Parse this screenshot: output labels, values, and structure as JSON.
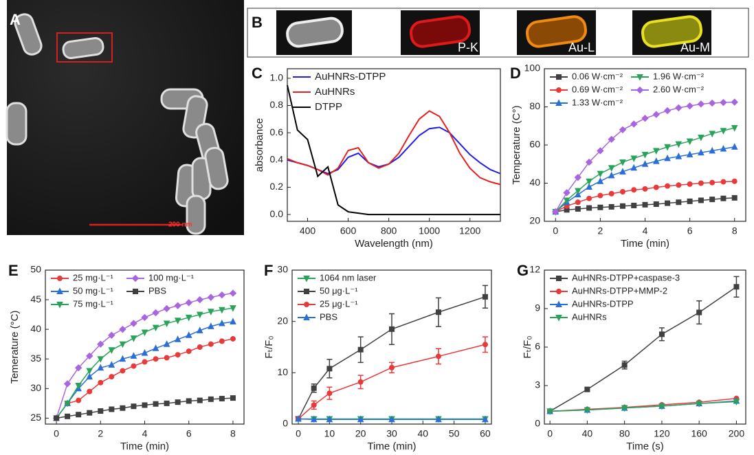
{
  "figure": {
    "panel_a": {
      "label": "A",
      "scale_bar": "200 nm"
    },
    "panel_b": {
      "label": "B",
      "maps": [
        "P-K",
        "Au-L",
        "Au-M"
      ]
    }
  },
  "chart_data": [
    {
      "type": "line",
      "panel_label": "C",
      "x_label": "Wavelength (nm)",
      "y_label": "absorbance",
      "legend": "upper left",
      "legend_columns": 1,
      "markers": false,
      "x": [
        300,
        350,
        400,
        450,
        500,
        550,
        600,
        650,
        700,
        750,
        800,
        850,
        900,
        950,
        1000,
        1050,
        1100,
        1150,
        1200,
        1250,
        1300,
        1350
      ],
      "xlim": [
        300,
        1350
      ],
      "xticks": [
        400,
        600,
        800,
        1000,
        1200
      ],
      "ylim": [
        -0.05,
        1.07
      ],
      "yticks": [
        {
          "value": 0,
          "label": "0.0"
        },
        {
          "value": 0.2,
          "label": "0.2"
        },
        {
          "value": 0.4,
          "label": "0.4"
        },
        {
          "value": 0.6,
          "label": "0.6"
        },
        {
          "value": 0.8,
          "label": "0.8"
        },
        {
          "value": 1,
          "label": "1.0"
        }
      ],
      "series": [
        {
          "name": "AuHNRs-DTPP",
          "color": "#1f1fe6",
          "values": [
            0.4,
            0.38,
            0.36,
            0.33,
            0.3,
            0.33,
            0.42,
            0.45,
            0.38,
            0.35,
            0.37,
            0.42,
            0.5,
            0.58,
            0.63,
            0.64,
            0.6,
            0.52,
            0.44,
            0.38,
            0.33,
            0.3
          ]
        },
        {
          "name": "AuHNRs",
          "color": "#e62020",
          "values": [
            0.41,
            0.38,
            0.36,
            0.33,
            0.29,
            0.34,
            0.47,
            0.49,
            0.38,
            0.34,
            0.37,
            0.45,
            0.58,
            0.7,
            0.76,
            0.72,
            0.6,
            0.45,
            0.34,
            0.27,
            0.24,
            0.22
          ]
        },
        {
          "name": "DTPP",
          "color": "#000000",
          "values": [
            0.95,
            0.62,
            0.55,
            0.28,
            0.35,
            0.07,
            0.02,
            0.01,
            0.0,
            0.0,
            0.0,
            0.0,
            0.0,
            0.0,
            0.0,
            0.0,
            0.0,
            0.0,
            0.0,
            0.0,
            0.0,
            0.0
          ]
        }
      ]
    },
    {
      "type": "line",
      "panel_label": "D",
      "x_label": "Time (min)",
      "y_label": "Temperature (C°)",
      "legend": "upper left",
      "legend_columns": 2,
      "markers": true,
      "x": [
        0,
        0.5,
        1,
        1.5,
        2,
        2.5,
        3,
        3.5,
        4,
        4.5,
        5,
        5.5,
        6,
        6.5,
        7,
        7.5,
        8
      ],
      "xlim": [
        -0.5,
        8.5
      ],
      "xticks": [
        0,
        2,
        4,
        6,
        8
      ],
      "ylim": [
        20,
        100
      ],
      "yticks": [
        20,
        40,
        60,
        80,
        100
      ],
      "series": [
        {
          "name": "0.06 W·cm⁻²",
          "color": "#404040",
          "marker": "square",
          "values": [
            25,
            26,
            26.5,
            27,
            27.3,
            27.6,
            28,
            28.3,
            28.7,
            29,
            29.5,
            30,
            30.5,
            31,
            31.5,
            32,
            32.3
          ]
        },
        {
          "name": "0.69 W·cm⁻²",
          "color": "#e83a3a",
          "marker": "circle",
          "values": [
            25,
            28,
            30,
            32,
            33.5,
            34.5,
            35.5,
            36.5,
            37,
            37.8,
            38.5,
            39,
            39.5,
            40,
            40.3,
            40.7,
            41
          ]
        },
        {
          "name": "1.33 W·cm⁻²",
          "color": "#2a6fd6",
          "marker": "triangle",
          "values": [
            25,
            30,
            34,
            38,
            41,
            44,
            46,
            48,
            50,
            51.5,
            53,
            54,
            55,
            56,
            57,
            58,
            59
          ]
        },
        {
          "name": "1.96 W·cm⁻²",
          "color": "#2aa35a",
          "marker": "triangle-down",
          "values": [
            25,
            31,
            36,
            41,
            45,
            48,
            51,
            53,
            55,
            57,
            59,
            60.5,
            62,
            64,
            66,
            67.5,
            69
          ]
        },
        {
          "name": "2.60 W·cm⁻²",
          "color": "#a766e0",
          "marker": "diamond",
          "values": [
            25,
            35,
            43,
            51,
            57,
            63,
            68,
            71,
            74,
            76,
            78,
            79.5,
            80.5,
            81.5,
            82,
            82.3,
            82.5
          ]
        }
      ]
    },
    {
      "type": "line",
      "panel_label": "E",
      "x_label": "Time (min)",
      "y_label": "Temerature (°C)",
      "legend": "upper left",
      "legend_columns": 2,
      "markers": true,
      "x": [
        0,
        0.5,
        1,
        1.5,
        2,
        2.5,
        3,
        3.5,
        4,
        4.5,
        5,
        5.5,
        6,
        6.5,
        7,
        7.5,
        8
      ],
      "xlim": [
        -0.5,
        8.5
      ],
      "xticks": [
        0,
        2,
        4,
        6,
        8
      ],
      "ylim": [
        24,
        50
      ],
      "yticks": [
        25,
        30,
        35,
        40,
        45,
        50
      ],
      "series": [
        {
          "name": "25 mg·L⁻¹",
          "color": "#e83a3a",
          "marker": "circle",
          "values": [
            25,
            27.5,
            28,
            29.5,
            31,
            32,
            33,
            33.8,
            34.5,
            35,
            35.2,
            35.7,
            36.3,
            37,
            37.5,
            38,
            38.4
          ]
        },
        {
          "name": "50 mg·L⁻¹",
          "color": "#2a6fd6",
          "marker": "triangle",
          "values": [
            25,
            27.5,
            30,
            32,
            33.5,
            34,
            35,
            35.5,
            36,
            36.8,
            37.5,
            38.3,
            39,
            39.8,
            40.5,
            41,
            41.3
          ]
        },
        {
          "name": "75 mg·L⁻¹",
          "color": "#2aa35a",
          "marker": "triangle-down",
          "values": [
            25,
            27.5,
            30.5,
            33,
            35,
            36.5,
            37.5,
            38.5,
            39.5,
            40.3,
            41,
            41.5,
            42,
            42.5,
            43,
            43.3,
            43.6
          ]
        },
        {
          "name": "100 mg·L⁻¹",
          "color": "#a766e0",
          "marker": "diamond",
          "values": [
            25,
            30.8,
            33.5,
            35.5,
            37.5,
            39,
            40,
            41,
            42,
            42.8,
            43.5,
            44,
            44.5,
            45,
            45.4,
            45.8,
            46.1
          ]
        },
        {
          "name": "PBS",
          "color": "#404040",
          "marker": "square",
          "values": [
            25,
            25.3,
            25.6,
            25.9,
            26.2,
            26.5,
            26.7,
            27,
            27.2,
            27.4,
            27.5,
            27.7,
            27.9,
            28,
            28.2,
            28.3,
            28.4
          ]
        }
      ]
    },
    {
      "type": "line",
      "panel_label": "F",
      "x_label": "Time (min)",
      "y_label": "Fₜ/F₀",
      "legend": "upper left",
      "legend_columns": 1,
      "markers": true,
      "x": [
        0,
        5,
        10,
        20,
        30,
        45,
        60
      ],
      "xlim": [
        -2,
        62
      ],
      "xticks": [
        0,
        10,
        20,
        30,
        40,
        50,
        60
      ],
      "ylim": [
        0,
        30
      ],
      "yticks": [
        0,
        10,
        20,
        30
      ],
      "series": [
        {
          "name": "1064 nm laser",
          "color": "#2aa35a",
          "marker": "triangle-down",
          "values": [
            1,
            1,
            1,
            1,
            1,
            1,
            1
          ]
        },
        {
          "name": "50 μg·L⁻¹",
          "color": "#404040",
          "marker": "square",
          "values": [
            1,
            7,
            10.8,
            14.5,
            18.5,
            21.8,
            24.8
          ],
          "errors": [
            0,
            0.8,
            1.8,
            2.5,
            3,
            2.8,
            2.2
          ]
        },
        {
          "name": "25 μg·L⁻¹",
          "color": "#e83a3a",
          "marker": "circle",
          "values": [
            1,
            3.7,
            6,
            8.2,
            11,
            13.2,
            15.5
          ],
          "errors": [
            0,
            0.8,
            1.2,
            1.3,
            1,
            1.5,
            1.5
          ]
        },
        {
          "name": "PBS",
          "color": "#2a6fd6",
          "marker": "triangle",
          "values": [
            1,
            0.9,
            0.9,
            0.9,
            0.9,
            0.9,
            0.9
          ]
        }
      ]
    },
    {
      "type": "line",
      "panel_label": "G",
      "x_label": "Time (s)",
      "y_label": "Fₜ/F₀",
      "legend": "upper left",
      "legend_columns": 1,
      "markers": true,
      "x": [
        0,
        40,
        80,
        120,
        160,
        200
      ],
      "xlim": [
        -6,
        210
      ],
      "xticks": [
        0,
        40,
        80,
        120,
        160,
        200
      ],
      "ylim": [
        0,
        12
      ],
      "yticks": [
        0,
        3,
        6,
        9,
        12
      ],
      "series": [
        {
          "name": "AuHNRs-DTPP+caspase-3",
          "color": "#404040",
          "marker": "square",
          "values": [
            1,
            2.7,
            4.6,
            7,
            8.7,
            10.7
          ],
          "errors": [
            0,
            0.15,
            0.3,
            0.5,
            0.9,
            0.8
          ]
        },
        {
          "name": "AuHNRs-DTPP+MMP-2",
          "color": "#e83a3a",
          "marker": "circle",
          "values": [
            1,
            1.15,
            1.3,
            1.5,
            1.7,
            2.0
          ]
        },
        {
          "name": "AuHNRs-DTPP",
          "color": "#2a6fd6",
          "marker": "triangle",
          "values": [
            1,
            1.1,
            1.25,
            1.4,
            1.6,
            1.8
          ]
        },
        {
          "name": "AuHNRs",
          "color": "#2aa35a",
          "marker": "triangle-down",
          "values": [
            1,
            1.1,
            1.25,
            1.4,
            1.6,
            1.75
          ]
        }
      ]
    }
  ]
}
